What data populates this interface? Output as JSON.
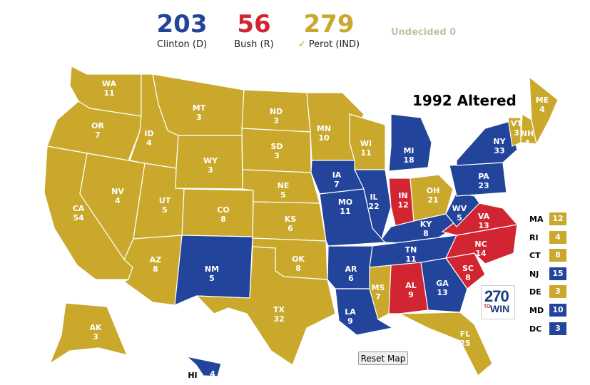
{
  "colors": {
    "dem": "#23449b",
    "rep": "#d22532",
    "ind": "#c9a82c",
    "undecided": "#c8bea5"
  },
  "totals": {
    "dem": {
      "votes": "203",
      "label": "Clinton (D)"
    },
    "rep": {
      "votes": "56",
      "label": "Bush (R)"
    },
    "ind": {
      "votes": "279",
      "label": "Perot (IND)",
      "check": "✓"
    },
    "undecided": "Undecided 0"
  },
  "map_title": "1992 Altered",
  "states": {
    "WA": {
      "abbr": "WA",
      "ev": "11",
      "party": "ind"
    },
    "OR": {
      "abbr": "OR",
      "ev": "7",
      "party": "ind"
    },
    "CA": {
      "abbr": "CA",
      "ev": "54",
      "party": "ind"
    },
    "NV": {
      "abbr": "NV",
      "ev": "4",
      "party": "ind"
    },
    "ID": {
      "abbr": "ID",
      "ev": "4",
      "party": "ind"
    },
    "MT": {
      "abbr": "MT",
      "ev": "3",
      "party": "ind"
    },
    "WY": {
      "abbr": "WY",
      "ev": "3",
      "party": "ind"
    },
    "UT": {
      "abbr": "UT",
      "ev": "5",
      "party": "ind"
    },
    "AZ": {
      "abbr": "AZ",
      "ev": "8",
      "party": "ind"
    },
    "CO": {
      "abbr": "CO",
      "ev": "8",
      "party": "ind"
    },
    "NM": {
      "abbr": "NM",
      "ev": "5",
      "party": "dem"
    },
    "ND": {
      "abbr": "ND",
      "ev": "3",
      "party": "ind"
    },
    "SD": {
      "abbr": "SD",
      "ev": "3",
      "party": "ind"
    },
    "NE": {
      "abbr": "NE",
      "ev": "5",
      "party": "ind"
    },
    "KS": {
      "abbr": "KS",
      "ev": "6",
      "party": "ind"
    },
    "OK": {
      "abbr": "OK",
      "ev": "8",
      "party": "ind"
    },
    "TX": {
      "abbr": "TX",
      "ev": "32",
      "party": "ind"
    },
    "MN": {
      "abbr": "MN",
      "ev": "10",
      "party": "ind"
    },
    "IA": {
      "abbr": "IA",
      "ev": "7",
      "party": "dem"
    },
    "MO": {
      "abbr": "MO",
      "ev": "11",
      "party": "dem"
    },
    "AR": {
      "abbr": "AR",
      "ev": "6",
      "party": "dem"
    },
    "LA": {
      "abbr": "LA",
      "ev": "9",
      "party": "dem"
    },
    "WI": {
      "abbr": "WI",
      "ev": "11",
      "party": "ind"
    },
    "IL": {
      "abbr": "IL",
      "ev": "22",
      "party": "dem"
    },
    "MI": {
      "abbr": "MI",
      "ev": "18",
      "party": "dem"
    },
    "IN": {
      "abbr": "IN",
      "ev": "12",
      "party": "rep"
    },
    "OH": {
      "abbr": "OH",
      "ev": "21",
      "party": "ind"
    },
    "KY": {
      "abbr": "KY",
      "ev": "8",
      "party": "dem"
    },
    "TN": {
      "abbr": "TN",
      "ev": "11",
      "party": "dem"
    },
    "MS": {
      "abbr": "MS",
      "ev": "7",
      "party": "ind"
    },
    "AL": {
      "abbr": "AL",
      "ev": "9",
      "party": "rep"
    },
    "GA": {
      "abbr": "GA",
      "ev": "13",
      "party": "dem"
    },
    "FL": {
      "abbr": "FL",
      "ev": "25",
      "party": "ind"
    },
    "SC": {
      "abbr": "SC",
      "ev": "8",
      "party": "rep"
    },
    "NC": {
      "abbr": "NC",
      "ev": "14",
      "party": "rep"
    },
    "VA": {
      "abbr": "VA",
      "ev": "13",
      "party": "rep"
    },
    "WV": {
      "abbr": "WV",
      "ev": "5",
      "party": "dem"
    },
    "PA": {
      "abbr": "PA",
      "ev": "23",
      "party": "dem"
    },
    "NY": {
      "abbr": "NY",
      "ev": "33",
      "party": "dem"
    },
    "VT": {
      "abbr": "VT",
      "ev": "3",
      "party": "ind"
    },
    "NH": {
      "abbr": "NH",
      "ev": "4",
      "party": "ind"
    },
    "ME": {
      "abbr": "ME",
      "ev": "4",
      "party": "ind"
    },
    "AK": {
      "abbr": "AK",
      "ev": "3",
      "party": "ind"
    },
    "HI": {
      "abbr": "HI",
      "ev": "4",
      "party": "dem"
    },
    "MA": {
      "abbr": "MA",
      "ev": "12",
      "party": "ind"
    },
    "RI": {
      "abbr": "RI",
      "ev": "4",
      "party": "ind"
    },
    "CT": {
      "abbr": "CT",
      "ev": "8",
      "party": "ind"
    },
    "NJ": {
      "abbr": "NJ",
      "ev": "15",
      "party": "dem"
    },
    "DE": {
      "abbr": "DE",
      "ev": "3",
      "party": "ind"
    },
    "MD": {
      "abbr": "MD",
      "ev": "10",
      "party": "dem"
    },
    "DC": {
      "abbr": "DC",
      "ev": "3",
      "party": "dem"
    }
  },
  "small_states": [
    "MA",
    "RI",
    "CT",
    "NJ",
    "DE",
    "MD",
    "DC"
  ],
  "logo": {
    "number": "270",
    "to": "TO",
    "win": "WIN"
  },
  "reset_label": "Reset Map"
}
